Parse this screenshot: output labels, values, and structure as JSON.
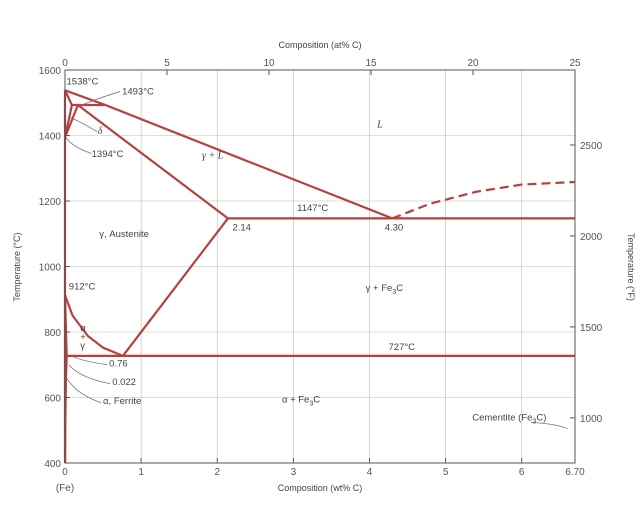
{
  "chart_data": {
    "type": "line",
    "x_axis": {
      "label": "Composition (wt% C)",
      "unit": "wt% C",
      "range": [
        0,
        6.7
      ],
      "ticks": [
        0,
        1,
        2,
        3,
        4,
        5,
        6,
        6.7
      ],
      "tick_labels": [
        "0",
        "1",
        "2",
        "3",
        "4",
        "5",
        "6",
        "6.70"
      ],
      "origin_note": "(Fe)"
    },
    "top_axis": {
      "label": "Composition (at% C)",
      "range": [
        0,
        25
      ],
      "tick_labels": [
        "0",
        "5",
        "10",
        "15",
        "20",
        "25"
      ]
    },
    "y_axis": {
      "label": "Temperature (°C)",
      "range": [
        400,
        1600
      ],
      "ticks": [
        400,
        600,
        800,
        1000,
        1200,
        1400,
        1600
      ],
      "tick_labels": [
        "400",
        "600",
        "800",
        "1000",
        "1200",
        "1400",
        "1600"
      ]
    },
    "right_axis": {
      "label": "Temperature (°F)",
      "ticks_f": [
        1000,
        1500,
        2000,
        2500
      ],
      "tick_labels": [
        "1000",
        "1500",
        "2000",
        "2500"
      ]
    },
    "grid": true,
    "series": [
      {
        "id": "liquidus-delta",
        "x": [
          0,
          0.53
        ],
        "y": [
          1538,
          1493
        ]
      },
      {
        "id": "liquidus-gamma",
        "x": [
          0.53,
          4.3
        ],
        "y": [
          1493,
          1147
        ]
      },
      {
        "id": "liquidus-fe3c",
        "style": "dashed",
        "x": [
          4.3,
          4.8,
          5.4,
          6.0,
          6.7
        ],
        "y": [
          1147,
          1192,
          1228,
          1250,
          1258
        ]
      },
      {
        "id": "delta-solidus",
        "x": [
          0,
          0.09
        ],
        "y": [
          1538,
          1493
        ]
      },
      {
        "id": "peritectic",
        "x": [
          0.09,
          0.53
        ],
        "y": [
          1493,
          1493
        ]
      },
      {
        "id": "delta-solvus",
        "x": [
          0,
          0.09
        ],
        "y": [
          1394,
          1493
        ]
      },
      {
        "id": "gamma-delta-boundary",
        "x": [
          0,
          0.17
        ],
        "y": [
          1394,
          1493
        ]
      },
      {
        "id": "gamma-solidus",
        "x": [
          0.17,
          2.14
        ],
        "y": [
          1493,
          1147
        ]
      },
      {
        "id": "eutectic",
        "x": [
          2.14,
          6.7
        ],
        "y": [
          1147,
          1147
        ]
      },
      {
        "id": "acm",
        "x": [
          0.76,
          2.14
        ],
        "y": [
          727,
          1147
        ]
      },
      {
        "id": "a3",
        "x": [
          0,
          0.1,
          0.3,
          0.5,
          0.76
        ],
        "y": [
          912,
          850,
          788,
          752,
          727
        ]
      },
      {
        "id": "eutectoid",
        "x": [
          0.022,
          6.7
        ],
        "y": [
          727,
          727
        ]
      },
      {
        "id": "alpha-gamma-boundary",
        "x": [
          0,
          0.022
        ],
        "y": [
          912,
          727
        ]
      },
      {
        "id": "alpha-solvus",
        "x": [
          0.022,
          0.012,
          0.005,
          0.001
        ],
        "y": [
          727,
          650,
          550,
          400
        ]
      },
      {
        "id": "fe-axis-line",
        "x": [
          0,
          0
        ],
        "y": [
          400,
          1538
        ]
      }
    ],
    "annotations": [
      {
        "text": "1538°C",
        "x": 0.02,
        "y": 1555
      },
      {
        "text": "1493°C",
        "x": 0.75,
        "y": 1525
      },
      {
        "text": "δ",
        "x": 0.43,
        "y": 1405
      },
      {
        "text": "1394°C",
        "x": 0.35,
        "y": 1335
      },
      {
        "text": "L",
        "x": 4.1,
        "y": 1425
      },
      {
        "text": "γ + L",
        "x": 1.8,
        "y": 1330
      },
      {
        "text": "1147°C",
        "x": 3.05,
        "y": 1170
      },
      {
        "text": "2.14",
        "x": 2.2,
        "y": 1110
      },
      {
        "text": "4.30",
        "x": 4.2,
        "y": 1110
      },
      {
        "text": "γ, Austenite",
        "x": 0.45,
        "y": 1090
      },
      {
        "text": "912°C",
        "x": 0.05,
        "y": 930
      },
      {
        "text": "γ + Fe3C",
        "x": 3.95,
        "y": 925
      },
      {
        "text": "α",
        "x": 0.2,
        "y": 803
      },
      {
        "text": "+",
        "x": 0.2,
        "y": 775
      },
      {
        "text": "γ",
        "x": 0.2,
        "y": 750
      },
      {
        "text": "727°C",
        "x": 4.25,
        "y": 745
      },
      {
        "text": "0.76",
        "x": 0.58,
        "y": 695
      },
      {
        "text": "0.022",
        "x": 0.62,
        "y": 638
      },
      {
        "text": "α, Ferrite",
        "x": 0.5,
        "y": 580
      },
      {
        "text": "α + Fe3C",
        "x": 2.85,
        "y": 585
      },
      {
        "text": "Cementite (Fe3C)",
        "x": 5.35,
        "y": 530
      }
    ],
    "colors": {
      "line": "#b5403e",
      "axis": "#555555",
      "grid": "#bbbbbb"
    }
  }
}
